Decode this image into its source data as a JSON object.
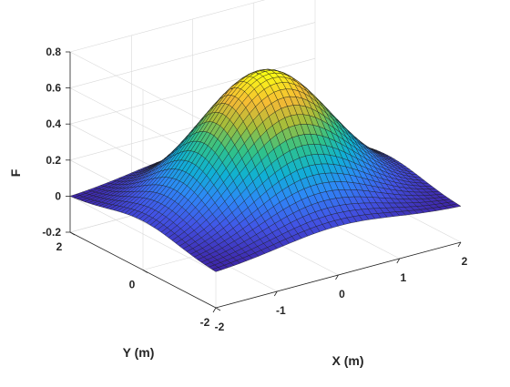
{
  "chart_data": {
    "type": "surface",
    "title": "",
    "xlabel": "X (m)",
    "ylabel": "Y (m)",
    "zlabel": "F",
    "xlim": [
      -2,
      2
    ],
    "ylim": [
      -2,
      2
    ],
    "zlim": [
      -0.2,
      0.8
    ],
    "x_ticks": [
      -2,
      -1,
      0,
      1,
      2
    ],
    "x_tick_labels": [
      "-2",
      "-1",
      "0",
      "1",
      "2"
    ],
    "y_ticks": [
      -2,
      0,
      2
    ],
    "y_tick_labels": [
      "-2",
      "0",
      "2"
    ],
    "z_ticks": [
      -0.2,
      0,
      0.2,
      0.4,
      0.6,
      0.8
    ],
    "z_tick_labels": [
      "-0.2",
      "0",
      "0.2",
      "0.4",
      "0.6",
      "0.8"
    ],
    "peak": {
      "x": 0,
      "y": 0,
      "z": 0.72
    },
    "corner_value_approx": 0.0,
    "colormap": "parula",
    "colors": [
      "#3e26a8",
      "#4254e6",
      "#2e87f7",
      "#0fb1d4",
      "#2fc28a",
      "#a3bd3a",
      "#f5b935",
      "#f9fb15"
    ],
    "grid": true,
    "mesh_lines": true,
    "view": {
      "azimuth_deg": -37.5,
      "elevation_deg": 30
    }
  }
}
